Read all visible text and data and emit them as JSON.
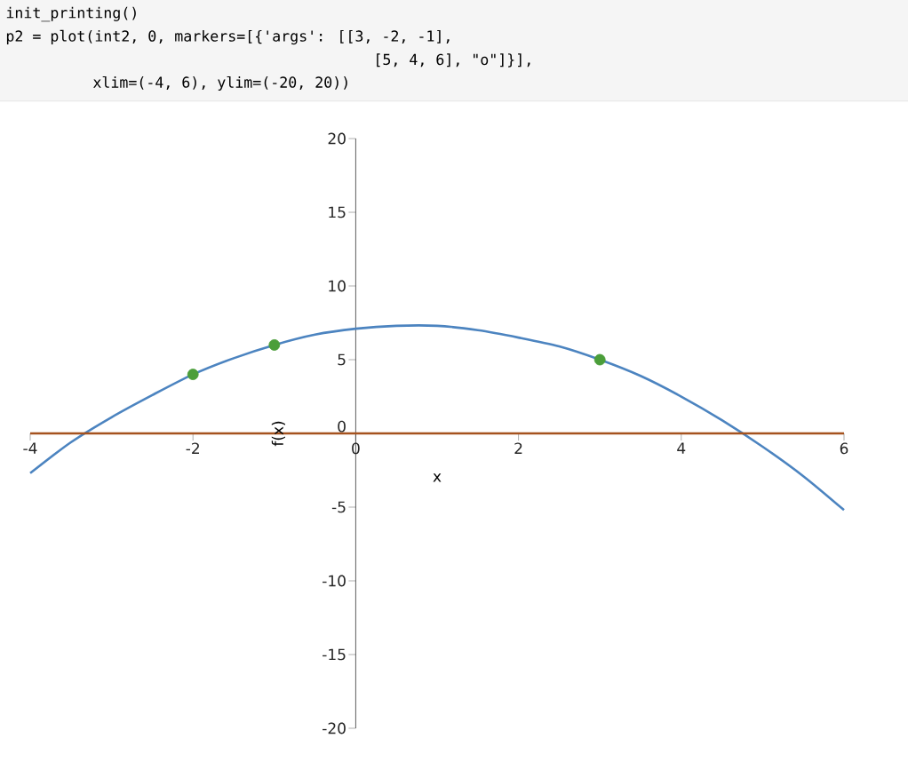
{
  "chart_data": {
    "type": "line",
    "xlabel": "x",
    "ylabel": "f(x)",
    "annotations": [
      "init_printing()",
      "p2 = plot(int2, 0, markers=[{'args': [[3, -2, -1],",
      "[5, 4, 6], \"o\"]}],",
      "xlim=(-4, 6), ylim=(-20, 20))"
    ],
    "xlim": [
      -4,
      6
    ],
    "ylim": [
      -20,
      20
    ],
    "xticks": [
      -4,
      -2,
      0,
      2,
      4,
      6
    ],
    "yticks": [
      -20,
      -15,
      -10,
      -5,
      0,
      5,
      10,
      15,
      20
    ],
    "grid": false,
    "series": [
      {
        "color": "#4c84c0",
        "x": [
          -4,
          -3.5,
          -3,
          -2.5,
          -2,
          -1.5,
          -1,
          -0.5,
          0,
          0.5,
          1,
          1.5,
          2,
          2.5,
          3,
          3.5,
          4,
          4.5,
          5,
          5.5,
          6
        ],
        "values": [
          -2.7,
          -0.6,
          1.1,
          2.6,
          4.0,
          5.1,
          6.0,
          6.7,
          7.1,
          7.3,
          7.3,
          7.0,
          6.5,
          5.9,
          5.0,
          3.9,
          2.5,
          0.9,
          -0.9,
          -2.9,
          -5.2
        ],
        "marker": "none"
      },
      {
        "color": "#a5521e",
        "x": [
          -4,
          6
        ],
        "values": [
          0,
          0
        ],
        "marker": "none"
      },
      {
        "type": "scatter",
        "color": "#4b9e3a",
        "x": [
          3,
          -2,
          -1
        ],
        "values": [
          5,
          4,
          6
        ],
        "marker": "circle"
      }
    ]
  }
}
